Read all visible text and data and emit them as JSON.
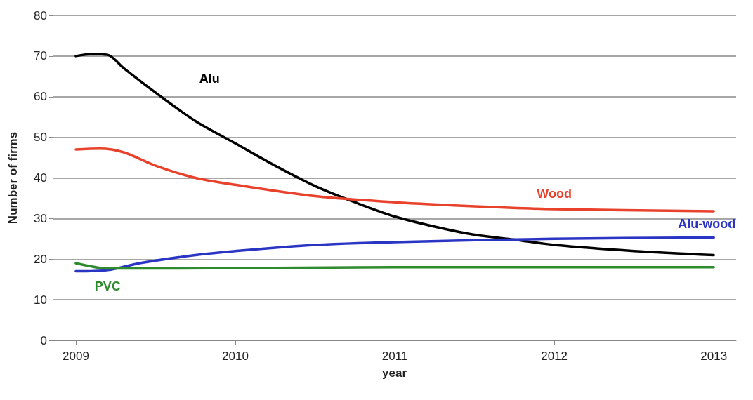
{
  "chart_data": {
    "type": "line",
    "xlabel": "year",
    "ylabel": "Number of firms",
    "xlim": [
      2008.855,
      2013.14
    ],
    "xticks": [
      2009,
      2010,
      2011,
      2012,
      2013
    ],
    "ylim": [
      0,
      80
    ],
    "yticks": [
      0,
      10,
      20,
      30,
      40,
      50,
      60,
      70,
      80
    ],
    "grid": "y",
    "legend": false,
    "marker": "none",
    "line_style": "solid",
    "series": [
      {
        "name": "Alu",
        "color": "#000000",
        "x": [
          2009,
          2009.1,
          2009.2,
          2009.3,
          2009.5,
          2009.75,
          2010,
          2010.25,
          2010.5,
          2010.75,
          2011,
          2011.25,
          2011.5,
          2011.75,
          2012,
          2012.5,
          2013
        ],
        "values": [
          70,
          70.5,
          70.3,
          67,
          61,
          54,
          48.5,
          43,
          38,
          34,
          30.5,
          28,
          26,
          24.8,
          23.5,
          22,
          21
        ]
      },
      {
        "name": "Wood",
        "color": "#e8412c",
        "x": [
          2009,
          2009.15,
          2009.3,
          2009.5,
          2009.75,
          2010,
          2010.5,
          2011,
          2011.5,
          2012,
          2013
        ],
        "values": [
          47,
          47.2,
          46.3,
          43,
          40,
          38.3,
          35.5,
          34,
          33,
          32.3,
          31.8
        ]
      },
      {
        "name": "Alu-wood",
        "color": "#2b35c4",
        "x": [
          2009,
          2009.2,
          2009.4,
          2009.75,
          2010,
          2010.5,
          2011,
          2012,
          2013
        ],
        "values": [
          17,
          17.3,
          19,
          21,
          22,
          23.5,
          24.2,
          25,
          25.3
        ]
      },
      {
        "name": "PVC",
        "color": "#2e8b2e",
        "x": [
          2009,
          2009.2,
          2009.5,
          2011,
          2013
        ],
        "values": [
          19,
          17.7,
          17.7,
          18,
          18
        ]
      }
    ]
  }
}
